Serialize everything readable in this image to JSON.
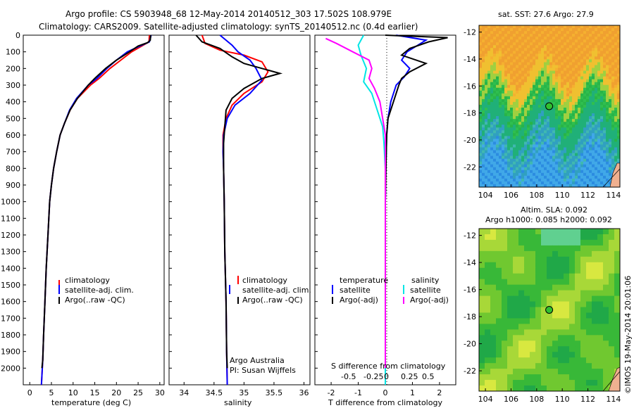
{
  "title": {
    "line1": "Argo profile: CS 5903948_68 12-May-2014 20140512_303 17.502S 108.979E",
    "line2": "Climatology: CARS2009. Satellite-adjusted climatology: synTS_20140512.nc (0.4d earlier)"
  },
  "colors": {
    "climatology": "#ff0000",
    "satellite": "#0000ff",
    "argo": "#000000",
    "sal_satellite": "#00e5e5",
    "sal_argo": "#ff00ff",
    "map_land": "#f0b090",
    "map_marker_fill": "#30c030"
  },
  "chart_data": [
    {
      "id": "temperature",
      "type": "line",
      "xlabel": "temperature (deg C)",
      "ylabel": "",
      "xlim": [
        -1.5,
        31
      ],
      "ylim": [
        2100,
        0
      ],
      "xticks": [
        0,
        5,
        10,
        15,
        20,
        25,
        30
      ],
      "yticks": [
        0,
        100,
        200,
        300,
        400,
        500,
        600,
        700,
        800,
        900,
        1000,
        1100,
        1200,
        1300,
        1400,
        1500,
        1600,
        1700,
        1800,
        1900,
        2000
      ],
      "legend": [
        "climatology",
        "satellite-adj. clim.",
        "Argo(..raw -QC)"
      ],
      "series": [
        {
          "name": "climatology",
          "color": "#ff0000",
          "points": [
            [
              27.6,
              0
            ],
            [
              27.5,
              40
            ],
            [
              25.5,
              70
            ],
            [
              23.5,
              100
            ],
            [
              21,
              150
            ],
            [
              18.5,
              200
            ],
            [
              16,
              260
            ],
            [
              14,
              300
            ],
            [
              11,
              380
            ],
            [
              9.3,
              450
            ],
            [
              8,
              530
            ],
            [
              7,
              600
            ],
            [
              6.2,
              700
            ],
            [
              5.5,
              800
            ],
            [
              5,
              900
            ],
            [
              4.6,
              1000
            ],
            [
              4.2,
              1200
            ],
            [
              3.8,
              1400
            ],
            [
              3.5,
              1600
            ],
            [
              3.2,
              1800
            ],
            [
              3,
              1950
            ],
            [
              2.7,
              2100
            ]
          ]
        },
        {
          "name": "satellite-adj. clim.",
          "color": "#0000ff",
          "points": [
            [
              28,
              0
            ],
            [
              27.6,
              40
            ],
            [
              25,
              70
            ],
            [
              22.5,
              100
            ],
            [
              20,
              150
            ],
            [
              17.8,
              200
            ],
            [
              15.5,
              260
            ],
            [
              13.5,
              300
            ],
            [
              10.8,
              380
            ],
            [
              9.2,
              450
            ],
            [
              8,
              530
            ],
            [
              7,
              600
            ],
            [
              6.2,
              700
            ],
            [
              5.5,
              800
            ],
            [
              5,
              900
            ],
            [
              4.6,
              1000
            ],
            [
              4.2,
              1200
            ],
            [
              3.8,
              1400
            ],
            [
              3.5,
              1600
            ],
            [
              3.2,
              1800
            ],
            [
              3,
              1950
            ],
            [
              2.7,
              2100
            ]
          ]
        },
        {
          "name": "Argo(..raw -QC)",
          "color": "#000000",
          "points": [
            [
              27.9,
              0
            ],
            [
              27.8,
              30
            ],
            [
              27.2,
              45
            ],
            [
              25,
              65
            ],
            [
              23,
              100
            ],
            [
              20,
              150
            ],
            [
              17.5,
              200
            ],
            [
              15,
              260
            ],
            [
              13.5,
              300
            ],
            [
              11,
              380
            ],
            [
              9.3,
              450
            ],
            [
              8,
              530
            ],
            [
              7,
              600
            ],
            [
              6.2,
              700
            ],
            [
              5.5,
              800
            ],
            [
              5,
              900
            ],
            [
              4.6,
              1000
            ],
            [
              4.2,
              1200
            ],
            [
              3.8,
              1400
            ],
            [
              3.5,
              1600
            ],
            [
              3.2,
              1800
            ],
            [
              3,
              1950
            ],
            [
              2.8,
              2000
            ]
          ]
        }
      ]
    },
    {
      "id": "salinity",
      "type": "line",
      "xlabel": "salinity",
      "xlim": [
        33.75,
        36.1
      ],
      "ylim": [
        2100,
        0
      ],
      "xticks": [
        34,
        34.5,
        35,
        35.5,
        36
      ],
      "legend": [
        "climatology",
        "satellite-adj. clim.",
        "Argo(..raw -QC)"
      ],
      "annotation": [
        "Argo Australia",
        "PI: Susan Wijffels"
      ],
      "series": [
        {
          "name": "climatology",
          "color": "#ff0000",
          "points": [
            [
              34.3,
              0
            ],
            [
              34.35,
              50
            ],
            [
              34.6,
              90
            ],
            [
              35,
              120
            ],
            [
              35.3,
              160
            ],
            [
              35.4,
              220
            ],
            [
              35.3,
              280
            ],
            [
              35,
              350
            ],
            [
              34.8,
              420
            ],
            [
              34.7,
              500
            ],
            [
              34.65,
              600
            ],
            [
              34.65,
              700
            ],
            [
              34.66,
              800
            ],
            [
              34.67,
              1000
            ],
            [
              34.68,
              1300
            ],
            [
              34.7,
              1600
            ],
            [
              34.71,
              1900
            ],
            [
              34.72,
              2100
            ]
          ]
        },
        {
          "name": "satellite-adj. clim.",
          "color": "#0000ff",
          "points": [
            [
              34.6,
              0
            ],
            [
              34.8,
              60
            ],
            [
              34.9,
              100
            ],
            [
              35.1,
              150
            ],
            [
              35.2,
              200
            ],
            [
              35.3,
              270
            ],
            [
              35.1,
              350
            ],
            [
              34.85,
              420
            ],
            [
              34.72,
              500
            ],
            [
              34.66,
              600
            ],
            [
              34.65,
              700
            ],
            [
              34.66,
              800
            ],
            [
              34.67,
              1000
            ],
            [
              34.68,
              1300
            ],
            [
              34.7,
              1600
            ],
            [
              34.71,
              1900
            ],
            [
              34.72,
              2100
            ]
          ]
        },
        {
          "name": "Argo(..raw -QC)",
          "color": "#000000",
          "points": [
            [
              34.2,
              0
            ],
            [
              34.3,
              40
            ],
            [
              34.6,
              80
            ],
            [
              34.8,
              130
            ],
            [
              35,
              170
            ],
            [
              35.3,
              200
            ],
            [
              35.6,
              230
            ],
            [
              35.3,
              260
            ],
            [
              35,
              320
            ],
            [
              34.8,
              380
            ],
            [
              34.7,
              450
            ],
            [
              34.68,
              550
            ],
            [
              34.66,
              650
            ],
            [
              34.66,
              800
            ],
            [
              34.67,
              1000
            ],
            [
              34.68,
              1300
            ],
            [
              34.7,
              1600
            ],
            [
              34.71,
              1900
            ],
            [
              34.72,
              2000
            ]
          ]
        }
      ]
    },
    {
      "id": "difference",
      "type": "line",
      "xlabel": "T difference from climatology",
      "xlabel_top": "S difference from climatology",
      "xlim": [
        -2.6,
        2.6
      ],
      "ylim": [
        2100,
        0
      ],
      "xticks": [
        -2,
        -1,
        0,
        1,
        2
      ],
      "s_ticks": [
        "-0.5",
        "-0.25",
        "0",
        "0.25",
        "0.5"
      ],
      "legend_titles": [
        "temperature",
        "salinity"
      ],
      "legend_left": [
        "satellite",
        "Argo(-adj)"
      ],
      "legend_right": [
        "satellite",
        "Argo(-adj)"
      ],
      "series": [
        {
          "name": "temperature satellite",
          "color": "#0000ff",
          "points": [
            [
              0.4,
              0
            ],
            [
              1.5,
              30
            ],
            [
              1.2,
              60
            ],
            [
              0.8,
              100
            ],
            [
              0.6,
              150
            ],
            [
              0.9,
              200
            ],
            [
              0.7,
              250
            ],
            [
              0.4,
              300
            ],
            [
              0.2,
              400
            ],
            [
              0.1,
              500
            ],
            [
              0.05,
              600
            ],
            [
              0.02,
              800
            ],
            [
              0,
              1000
            ],
            [
              0,
              2100
            ]
          ]
        },
        {
          "name": "temperature Argo(-adj)",
          "color": "#000000",
          "points": [
            [
              0,
              0
            ],
            [
              2.3,
              15
            ],
            [
              1.6,
              40
            ],
            [
              0.9,
              80
            ],
            [
              0.6,
              120
            ],
            [
              1.5,
              170
            ],
            [
              0.9,
              220
            ],
            [
              0.6,
              260
            ],
            [
              0.5,
              300
            ],
            [
              0.3,
              400
            ],
            [
              0.1,
              500
            ],
            [
              0.05,
              600
            ],
            [
              0.02,
              800
            ],
            [
              0,
              1000
            ],
            [
              0,
              2000
            ]
          ]
        },
        {
          "name": "salinity satellite",
          "color": "#00e5e5",
          "points": [
            [
              -0.8,
              0
            ],
            [
              -1,
              60
            ],
            [
              -0.9,
              120
            ],
            [
              -0.7,
              200
            ],
            [
              -0.8,
              280
            ],
            [
              -0.5,
              350
            ],
            [
              -0.3,
              450
            ],
            [
              -0.1,
              550
            ],
            [
              -0.05,
              650
            ],
            [
              0,
              800
            ],
            [
              0,
              2100
            ]
          ]
        },
        {
          "name": "salinity Argo(-adj)",
          "color": "#ff00ff",
          "points": [
            [
              -2.2,
              20
            ],
            [
              -1.8,
              50
            ],
            [
              -1.2,
              100
            ],
            [
              -0.6,
              150
            ],
            [
              -0.5,
              200
            ],
            [
              -0.6,
              260
            ],
            [
              -0.4,
              320
            ],
            [
              -0.2,
              400
            ],
            [
              -0.1,
              500
            ],
            [
              0,
              600
            ],
            [
              0,
              2000
            ]
          ]
        }
      ]
    },
    {
      "id": "sst-map",
      "type": "heatmap",
      "title": "sat. SST: 27.6  Argo: 27.9",
      "xlim": [
        103.5,
        114.5
      ],
      "ylim": [
        -23.5,
        -11.5
      ],
      "xticks": [
        104,
        106,
        108,
        110,
        112,
        114
      ],
      "yticks": [
        -12,
        -14,
        -16,
        -18,
        -20,
        -22
      ],
      "marker": [
        108.979,
        -17.502
      ]
    },
    {
      "id": "sla-map",
      "type": "heatmap",
      "title_line1": "Altim. SLA: 0.092",
      "title_line2": "Argo h1000: 0.085  h2000: 0.092",
      "xlim": [
        103.5,
        114.5
      ],
      "ylim": [
        -23.5,
        -11.5
      ],
      "xticks": [
        104,
        106,
        108,
        110,
        112,
        114
      ],
      "yticks": [
        -12,
        -14,
        -16,
        -18,
        -20,
        -22
      ],
      "marker": [
        108.979,
        -17.502
      ]
    }
  ],
  "footer": "©IMOS 19-May-2014 20:01:06"
}
